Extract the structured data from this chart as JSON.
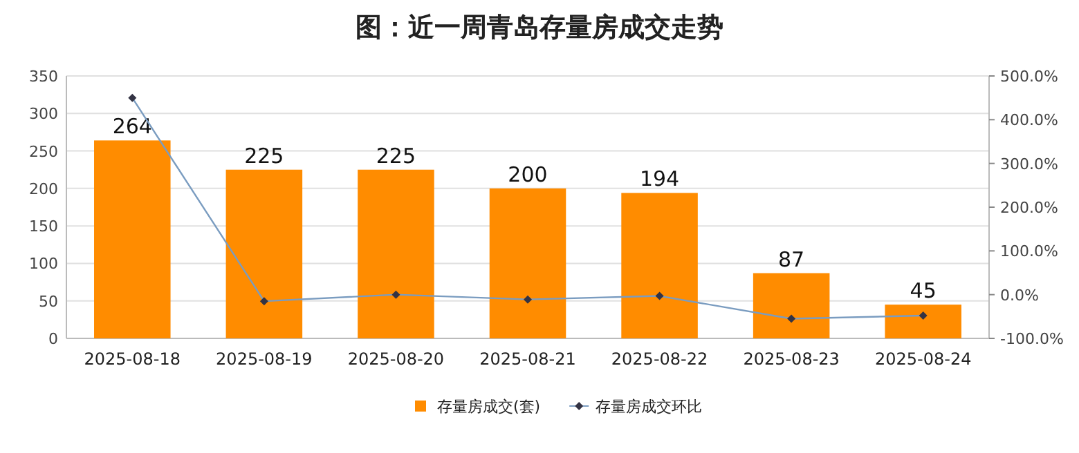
{
  "chart_data": {
    "type": "bar",
    "title": "图：近一周青岛存量房成交走势",
    "categories": [
      "2025-08-18",
      "2025-08-19",
      "2025-08-20",
      "2025-08-21",
      "2025-08-22",
      "2025-08-23",
      "2025-08-24"
    ],
    "series": [
      {
        "name": "存量房成交(套)",
        "color": "#ff8c00",
        "values": [
          264,
          225,
          225,
          200,
          194,
          87,
          45
        ],
        "value_labels": [
          "264",
          "225",
          "225",
          "200",
          "194",
          "87",
          "45"
        ]
      },
      {
        "name": "存量房成交环比",
        "type": "line",
        "axis": "y2",
        "color": "#7a9cc0",
        "marker": "diamond",
        "values": [
          450,
          -15,
          0,
          -11,
          -3,
          -55,
          -48
        ]
      }
    ],
    "ylim": [
      0,
      350
    ],
    "yticks": [
      0,
      50,
      100,
      150,
      200,
      250,
      300,
      350
    ],
    "y2lim": [
      -100,
      500
    ],
    "y2ticks": [
      {
        "value": -100,
        "label": "-100.0%"
      },
      {
        "value": 0,
        "label": "0.0%"
      },
      {
        "value": 100,
        "label": "100.0%"
      },
      {
        "value": 200,
        "label": "200.0%"
      },
      {
        "value": 300,
        "label": "300.0%"
      },
      {
        "value": 400,
        "label": "400.0%"
      },
      {
        "value": 500,
        "label": "500.0%"
      }
    ],
    "grid": "y",
    "legend": "bottom"
  }
}
